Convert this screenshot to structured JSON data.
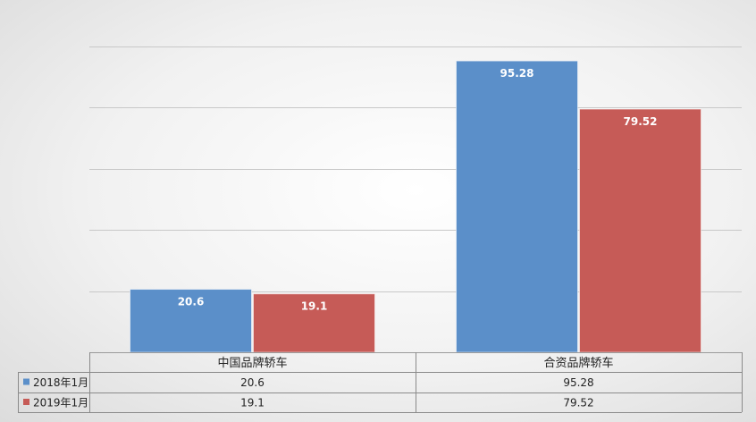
{
  "chart_data": {
    "type": "bar",
    "title": "",
    "xlabel": "",
    "ylabel": "",
    "ylim": [
      0,
      100
    ],
    "grid": true,
    "legend": "data-table",
    "categories": [
      "中国品牌轿车",
      "合资品牌轿车"
    ],
    "series": [
      {
        "name": "2018年1月",
        "values": [
          20.6,
          95.28
        ],
        "labels": [
          "20.6",
          "95.28"
        ],
        "color": "#5b8fc9"
      },
      {
        "name": "2019年1月",
        "values": [
          19.1,
          79.52
        ],
        "labels": [
          "19.1",
          "79.52"
        ],
        "color": "#c65b57"
      }
    ]
  }
}
